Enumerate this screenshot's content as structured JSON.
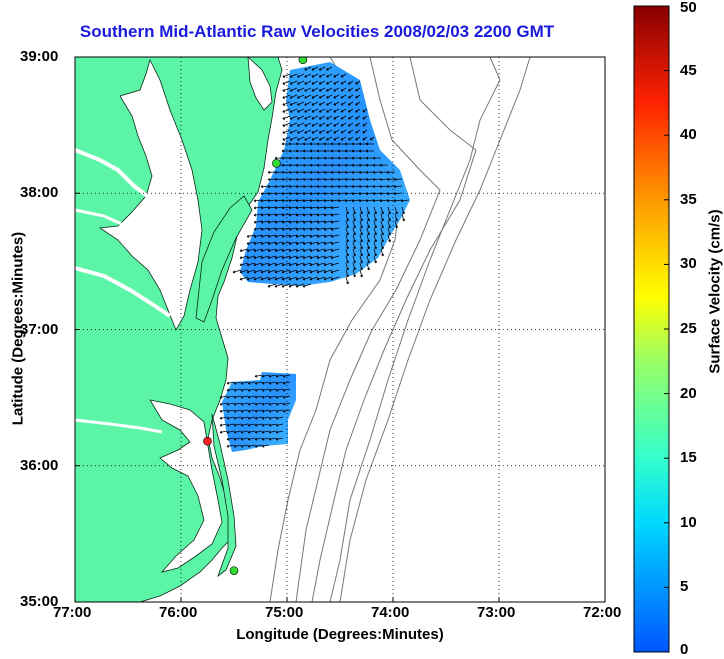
{
  "chart_data": {
    "type": "map",
    "title": "Southern Mid-Atlantic Raw Velocities 2008/02/03 2200 GMT",
    "xlabel": "Longitude (Degrees:Minutes)",
    "ylabel": "Latitude (Degrees:Minutes)",
    "x_ticks": [
      "77:00",
      "76:00",
      "75:00",
      "74:00",
      "73:00",
      "72:00"
    ],
    "y_ticks": [
      "39:00",
      "38:00",
      "37:00",
      "36:00",
      "35:00"
    ],
    "xlim": [
      -77,
      -72
    ],
    "ylim": [
      35,
      39
    ],
    "grid": true,
    "colorbar": {
      "label": "Surface Velocity (cm/s)",
      "ticks": [
        0,
        5,
        10,
        15,
        20,
        25,
        30,
        35,
        40,
        45,
        50
      ],
      "range": [
        0,
        50
      ],
      "colormap": "jet"
    },
    "colors": {
      "land": "#5cf5a8",
      "title": "#1a1adc",
      "station_active": "#33dd33",
      "station_inactive": "#ff2020"
    },
    "stations": [
      {
        "lon": -74.85,
        "lat": 38.98,
        "status": "active"
      },
      {
        "lon": -75.1,
        "lat": 38.22,
        "status": "active"
      },
      {
        "lon": -75.75,
        "lat": 36.18,
        "status": "inactive"
      },
      {
        "lon": -75.5,
        "lat": 35.23,
        "status": "active"
      }
    ]
  }
}
